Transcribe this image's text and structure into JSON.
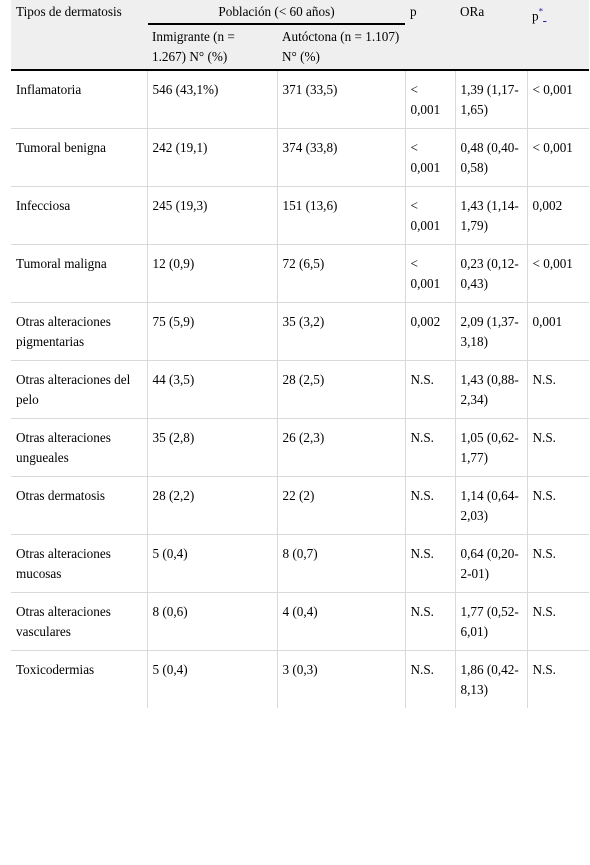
{
  "header": {
    "col_tipos": "Tipos de dermatosis",
    "col_poblacion": "Población (< 60 años)",
    "col_p": "p",
    "col_ora": "ORa",
    "col_p2": "p",
    "col_p2_marker": "*",
    "col_inmigrante": "Inmigrante (n = 1.267) N° (%)",
    "col_autoctona": "Autóctona (n = 1.107) N° (%)"
  },
  "rows": [
    {
      "tipo": "Inflamatoria",
      "inmigrante": "546 (43,1%)",
      "autoctona": "371 (33,5)",
      "p": "< 0,001",
      "ora": "1,39 (1,17-1,65)",
      "p2": "< 0,001"
    },
    {
      "tipo": "Tumoral benigna",
      "inmigrante": "242 (19,1)",
      "autoctona": "374 (33,8)",
      "p": "< 0,001",
      "ora": "0,48 (0,40-0,58)",
      "p2": "< 0,001"
    },
    {
      "tipo": "Infecciosa",
      "inmigrante": "245 (19,3)",
      "autoctona": "151 (13,6)",
      "p": "< 0,001",
      "ora": "1,43 (1,14-1,79)",
      "p2": "0,002"
    },
    {
      "tipo": "Tumoral maligna",
      "inmigrante": "12 (0,9)",
      "autoctona": "72 (6,5)",
      "p": "< 0,001",
      "ora": "0,23 (0,12-0,43)",
      "p2": "< 0,001"
    },
    {
      "tipo": "Otras alteraciones pigmentarias",
      "inmigrante": "75 (5,9)",
      "autoctona": "35 (3,2)",
      "p": "0,002",
      "ora": "2,09 (1,37-3,18)",
      "p2": "0,001"
    },
    {
      "tipo": "Otras alteraciones del pelo",
      "inmigrante": "44 (3,5)",
      "autoctona": "28 (2,5)",
      "p": "N.S.",
      "ora": "1,43 (0,88-2,34)",
      "p2": "N.S."
    },
    {
      "tipo": "Otras alteraciones ungueales",
      "inmigrante": "35 (2,8)",
      "autoctona": "26 (2,3)",
      "p": "N.S.",
      "ora": "1,05 (0,62-1,77)",
      "p2": "N.S."
    },
    {
      "tipo": "Otras dermatosis",
      "inmigrante": "28 (2,2)",
      "autoctona": "22 (2)",
      "p": "N.S.",
      "ora": "1,14 (0,64-2,03)",
      "p2": "N.S."
    },
    {
      "tipo": "Otras alteraciones mucosas",
      "inmigrante": "5 (0,4)",
      "autoctona": "8 (0,7)",
      "p": "N.S.",
      "ora": "0,64 (0,20-2-01)",
      "p2": "N.S."
    },
    {
      "tipo": "Otras alteraciones vasculares",
      "inmigrante": "8 (0,6)",
      "autoctona": "4 (0,4)",
      "p": "N.S.",
      "ora": "1,77 (0,52-6,01)",
      "p2": "N.S."
    },
    {
      "tipo": "Toxicodermias",
      "inmigrante": "5 (0,4)",
      "autoctona": "3 (0,3)",
      "p": "N.S.",
      "ora": "1,86 (0,42-8,13)",
      "p2": "N.S."
    }
  ]
}
